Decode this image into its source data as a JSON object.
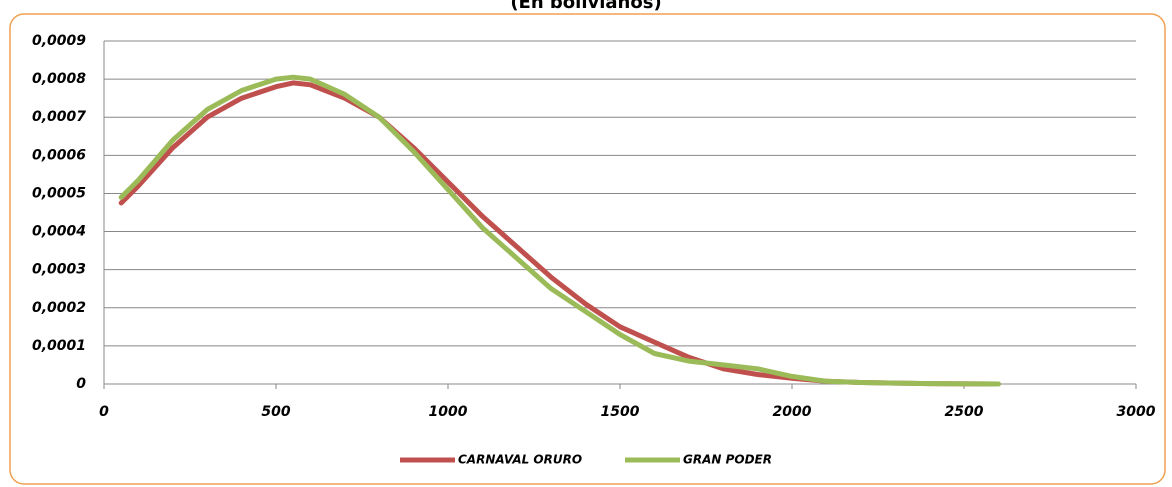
{
  "chart_data": {
    "type": "line",
    "title": "(En bolivianos)",
    "x": [
      50,
      100,
      200,
      300,
      400,
      500,
      550,
      600,
      700,
      800,
      900,
      1000,
      1100,
      1200,
      1300,
      1400,
      1500,
      1600,
      1700,
      1800,
      1900,
      2000,
      2100,
      2200,
      2400,
      2600
    ],
    "series": [
      {
        "name": "CARNAVAL ORURO",
        "color": "#c0504d",
        "values": [
          0.000475,
          0.00052,
          0.00062,
          0.0007,
          0.00075,
          0.00078,
          0.00079,
          0.000785,
          0.00075,
          0.0007,
          0.00062,
          0.00053,
          0.00044,
          0.00036,
          0.00028,
          0.00021,
          0.00015,
          0.00011,
          7e-05,
          4e-05,
          2.5e-05,
          1.5e-05,
          7e-06,
          4e-06,
          1e-06,
          0
        ]
      },
      {
        "name": "GRAN PODER",
        "color": "#9bbb59",
        "values": [
          0.00049,
          0.000535,
          0.00064,
          0.00072,
          0.00077,
          0.0008,
          0.000805,
          0.0008,
          0.00076,
          0.0007,
          0.00061,
          0.00051,
          0.00041,
          0.00033,
          0.00025,
          0.00019,
          0.00013,
          8e-05,
          6e-05,
          5e-05,
          4e-05,
          2e-05,
          7e-06,
          4e-06,
          1e-06,
          0
        ]
      }
    ],
    "xlim": [
      0,
      3000
    ],
    "xticks": [
      0,
      500,
      1000,
      1500,
      2000,
      2500,
      3000
    ],
    "ylim": [
      0,
      0.0009
    ],
    "yticks": [
      0,
      {
        "value": 0.0001,
        "label": "0,0001"
      },
      {
        "value": 0.0002,
        "label": "0,0002"
      },
      {
        "value": 0.0003,
        "label": "0,0003"
      },
      {
        "value": 0.0004,
        "label": "0,0004"
      },
      {
        "value": 0.0005,
        "label": "0,0005"
      },
      {
        "value": 0.0006,
        "label": "0,0006"
      },
      {
        "value": 0.0007,
        "label": "0,0007"
      },
      {
        "value": 0.0008,
        "label": "0,0008"
      },
      {
        "value": 0.0009,
        "label": "0,0009"
      }
    ],
    "grid": true,
    "legend": "bottom"
  }
}
